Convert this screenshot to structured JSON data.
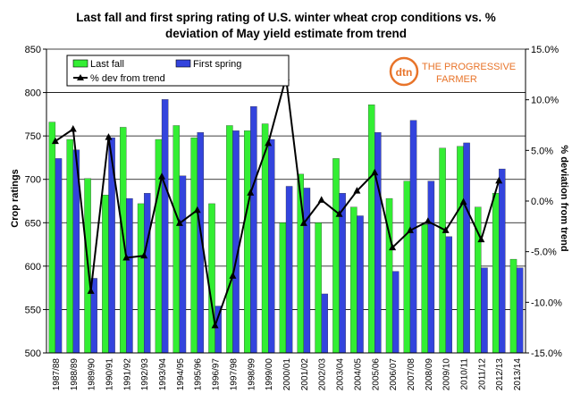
{
  "chart_data": {
    "type": "bar",
    "title": "Last fall and first spring rating of U.S. winter wheat crop conditions vs. % deviation of May yield estimate from trend",
    "title_lines": [
      "Last fall and first spring rating of U.S. winter wheat crop conditions vs. %",
      "deviation of May yield estimate from trend"
    ],
    "ylabel": "Crop ratings",
    "y2label": "% deviation from trend",
    "ylim": [
      500,
      850
    ],
    "yticks": [
      "500",
      "550",
      "600",
      "650",
      "700",
      "750",
      "800",
      "850"
    ],
    "y2lim": [
      -15,
      15
    ],
    "y2ticks": [
      "-15.0%",
      "-10.0%",
      "-5.0%",
      "0.0%",
      "5.0%",
      "10.0%",
      "15.0%"
    ],
    "grid": "horizontal",
    "legend_position": "top-left",
    "categories": [
      "1987/88",
      "1988/89",
      "1989/90",
      "1990/91",
      "1991/92",
      "1992/93",
      "1993/94",
      "1994/95",
      "1995/96",
      "1996/97",
      "1997/98",
      "1998/99",
      "1999/00",
      "2000/01",
      "2001/02",
      "2002/03",
      "2003/04",
      "2004/05",
      "2005/06",
      "2006/07",
      "2007/08",
      "2008/09",
      "2009/10",
      "2010/11",
      "2011/12",
      "2012/13",
      "2013/14"
    ],
    "series": [
      {
        "name": "Last fall",
        "type": "bar",
        "axis": "left",
        "color": "#33ee33",
        "values": [
          766,
          746,
          701,
          682,
          760,
          672,
          746,
          762,
          748,
          672,
          762,
          756,
          764,
          650,
          706,
          650,
          724,
          668,
          786,
          678,
          698,
          648,
          736,
          738,
          668,
          684,
          608
        ]
      },
      {
        "name": "First spring",
        "type": "bar",
        "axis": "left",
        "color": "#3344dd",
        "values": [
          724,
          734,
          586,
          748,
          678,
          684,
          792,
          704,
          754,
          554,
          756,
          784,
          746,
          692,
          690,
          568,
          684,
          658,
          754,
          594,
          768,
          698,
          634,
          742,
          598,
          712,
          598
        ]
      },
      {
        "name": "% dev from trend",
        "type": "line",
        "axis": "right",
        "color": "#000000",
        "values": [
          5.9,
          7.1,
          -8.9,
          6.3,
          -5.6,
          -5.4,
          2.4,
          -2.2,
          -0.9,
          -12.3,
          -7.4,
          0.8,
          5.7,
          12.2,
          -2.2,
          0.1,
          -1.3,
          1.0,
          2.8,
          -4.6,
          -2.9,
          -2.0,
          -2.9,
          -0.1,
          -3.8,
          2.0,
          null
        ]
      }
    ]
  },
  "logo": {
    "mark": "dtn",
    "line1": "THE PROGRESSIVE",
    "line2": "FARMER",
    "color": "#e8742a"
  }
}
